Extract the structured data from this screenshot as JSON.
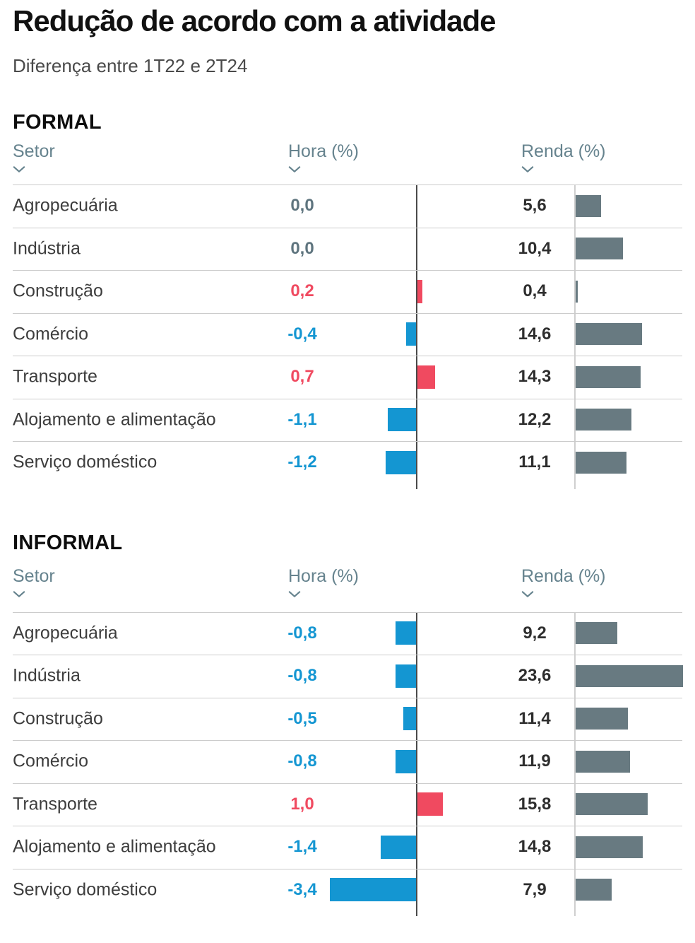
{
  "header": {
    "title": "Redução de acordo com a atividade",
    "subtitle": "Diferença entre 1T22 e 2T24"
  },
  "columns": {
    "sector": "Setor",
    "hours": "Hora (%)",
    "income": "Renda (%)"
  },
  "colors": {
    "blue": "#1496D2",
    "red": "#F04A60",
    "bar_gray": "#687A81",
    "header_slate": "#66838E",
    "zero_slate": "#5E747E",
    "label_gray": "#3D3D3D",
    "value_dark": "#2E2E2E",
    "separator": "#CCCCCC",
    "axis_dark": "#4A4A4A",
    "axis_light": "#CFCFCF"
  },
  "sections": [
    {
      "id": "formal",
      "title": "FORMAL",
      "rows": [
        {
          "sector": "Agropecuária",
          "hora": "0,0",
          "hora_value": 0.0,
          "renda": "5,6",
          "renda_value": 5.6
        },
        {
          "sector": "Indústria",
          "hora": "0,0",
          "hora_value": 0.0,
          "renda": "10,4",
          "renda_value": 10.4
        },
        {
          "sector": "Construção",
          "hora": "0,2",
          "hora_value": 0.2,
          "renda": "0,4",
          "renda_value": 0.4
        },
        {
          "sector": "Comércio",
          "hora": "-0,4",
          "hora_value": -0.4,
          "renda": "14,6",
          "renda_value": 14.6
        },
        {
          "sector": "Transporte",
          "hora": "0,7",
          "hora_value": 0.7,
          "renda": "14,3",
          "renda_value": 14.3
        },
        {
          "sector": "Alojamento e alimentação",
          "hora": "-1,1",
          "hora_value": -1.1,
          "renda": "12,2",
          "renda_value": 12.2
        },
        {
          "sector": "Serviço doméstico",
          "hora": "-1,2",
          "hora_value": -1.2,
          "renda": "11,1",
          "renda_value": 11.1
        }
      ]
    },
    {
      "id": "informal",
      "title": "INFORMAL",
      "rows": [
        {
          "sector": "Agropecuária",
          "hora": "-0,8",
          "hora_value": -0.8,
          "renda": "9,2",
          "renda_value": 9.2
        },
        {
          "sector": "Indústria",
          "hora": "-0,8",
          "hora_value": -0.8,
          "renda": "23,6",
          "renda_value": 23.6
        },
        {
          "sector": "Construção",
          "hora": "-0,5",
          "hora_value": -0.5,
          "renda": "11,4",
          "renda_value": 11.4
        },
        {
          "sector": "Comércio",
          "hora": "-0,8",
          "hora_value": -0.8,
          "renda": "11,9",
          "renda_value": 11.9
        },
        {
          "sector": "Transporte",
          "hora": "1,0",
          "hora_value": 1.0,
          "renda": "15,8",
          "renda_value": 15.8
        },
        {
          "sector": "Alojamento e alimentação",
          "hora": "-1,4",
          "hora_value": -1.4,
          "renda": "14,8",
          "renda_value": 14.8
        },
        {
          "sector": "Serviço doméstico",
          "hora": "-3,4",
          "hora_value": -3.4,
          "renda": "7,9",
          "renda_value": 7.9
        }
      ]
    }
  ],
  "chart_data": [
    {
      "type": "bar",
      "title": "FORMAL",
      "orientation": "horizontal",
      "categories": [
        "Agropecuária",
        "Indústria",
        "Construção",
        "Comércio",
        "Transporte",
        "Alojamento e alimentação",
        "Serviço doméstico"
      ],
      "series": [
        {
          "name": "Hora (%)",
          "values": [
            0.0,
            0.0,
            0.2,
            -0.4,
            0.7,
            -1.1,
            -1.2
          ]
        },
        {
          "name": "Renda (%)",
          "values": [
            5.6,
            10.4,
            0.4,
            14.6,
            14.3,
            12.2,
            11.1
          ]
        }
      ],
      "hora_axis_range": [
        -3.5,
        1.1
      ],
      "renda_axis_range": [
        0,
        23.6
      ],
      "legend_position": "none",
      "grid": false
    },
    {
      "type": "bar",
      "title": "INFORMAL",
      "orientation": "horizontal",
      "categories": [
        "Agropecuária",
        "Indústria",
        "Construção",
        "Comércio",
        "Transporte",
        "Alojamento e alimentação",
        "Serviço doméstico"
      ],
      "series": [
        {
          "name": "Hora (%)",
          "values": [
            -0.8,
            -0.8,
            -0.5,
            -0.8,
            1.0,
            -1.4,
            -3.4
          ]
        },
        {
          "name": "Renda (%)",
          "values": [
            9.2,
            23.6,
            11.4,
            11.9,
            15.8,
            14.8,
            7.9
          ]
        }
      ],
      "hora_axis_range": [
        -3.5,
        1.1
      ],
      "renda_axis_range": [
        0,
        23.6
      ],
      "legend_position": "none",
      "grid": false
    }
  ]
}
